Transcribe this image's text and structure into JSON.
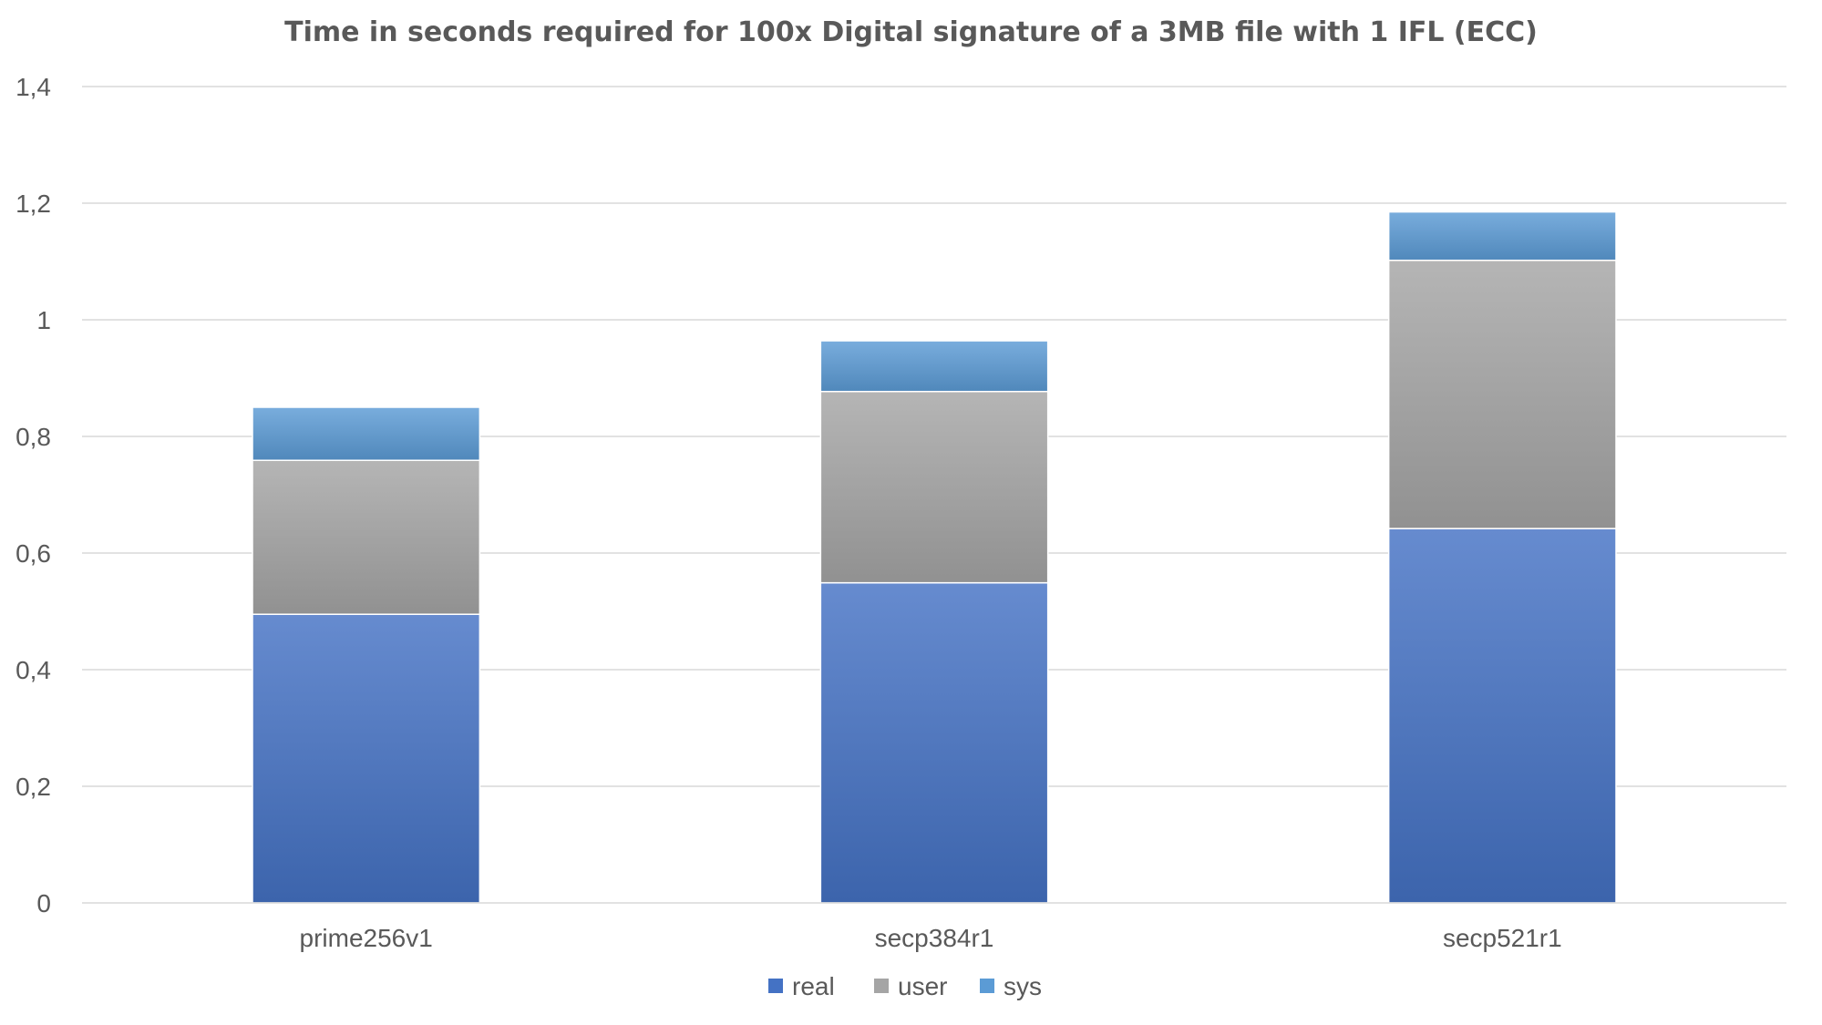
{
  "chart_data": {
    "type": "bar",
    "stacked": true,
    "title": "Time in seconds required for 100x Digital signature of a 3MB file with 1 IFL (ECC)",
    "xlabel": "",
    "ylabel": "",
    "categories": [
      "prime256v1",
      "secp384r1",
      "secp521r1"
    ],
    "series": [
      {
        "name": "real",
        "values": [
          0.495,
          0.549,
          0.642
        ],
        "color": "#4472C4"
      },
      {
        "name": "user",
        "values": [
          0.264,
          0.328,
          0.46
        ],
        "color": "#A5A5A5"
      },
      {
        "name": "sys",
        "values": [
          0.091,
          0.087,
          0.083
        ],
        "color": "#5B9BD5"
      }
    ],
    "ylim": [
      0,
      1.4
    ],
    "yticks": [
      "0",
      "0,2",
      "0,4",
      "0,6",
      "0,8",
      "1",
      "1,2",
      "1,4"
    ],
    "grid": true,
    "legend": "bottom"
  }
}
